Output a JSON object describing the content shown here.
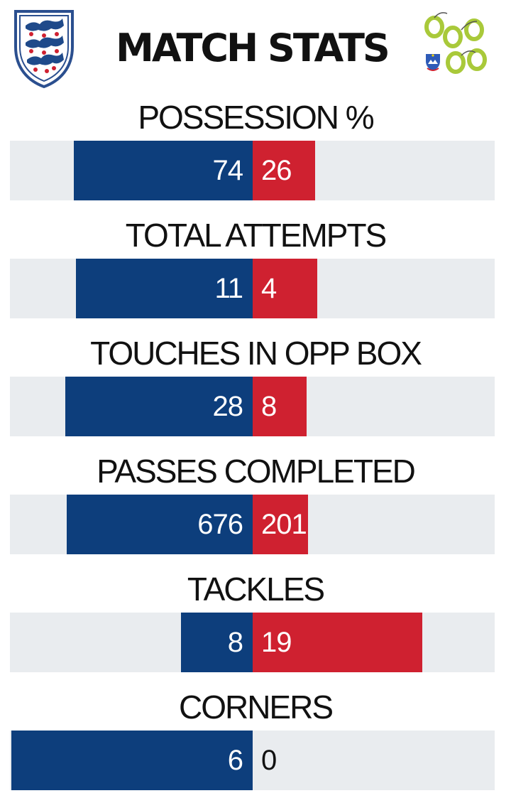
{
  "header": {
    "title": "MATCH STATS",
    "home_crest_icon": "england-three-lions-crest-icon",
    "away_crest_icon": "slovenia-crest-icon"
  },
  "colors": {
    "home": "#0d3e7c",
    "away": "#cf2130",
    "track": "#e9ecef"
  },
  "chart_data": {
    "type": "bar",
    "orientation": "horizontal-diverging",
    "title": "MATCH STATS",
    "categories": [
      "POSSESSION %",
      "TOTAL ATTEMPTS",
      "TOUCHES IN OPP BOX",
      "PASSES COMPLETED",
      "TACKLES",
      "CORNERS"
    ],
    "series": [
      {
        "values": [
          74,
          11,
          28,
          676,
          8,
          6
        ]
      },
      {
        "values": [
          26,
          4,
          8,
          201,
          19,
          0
        ]
      }
    ],
    "grid": false,
    "legend": "none"
  }
}
